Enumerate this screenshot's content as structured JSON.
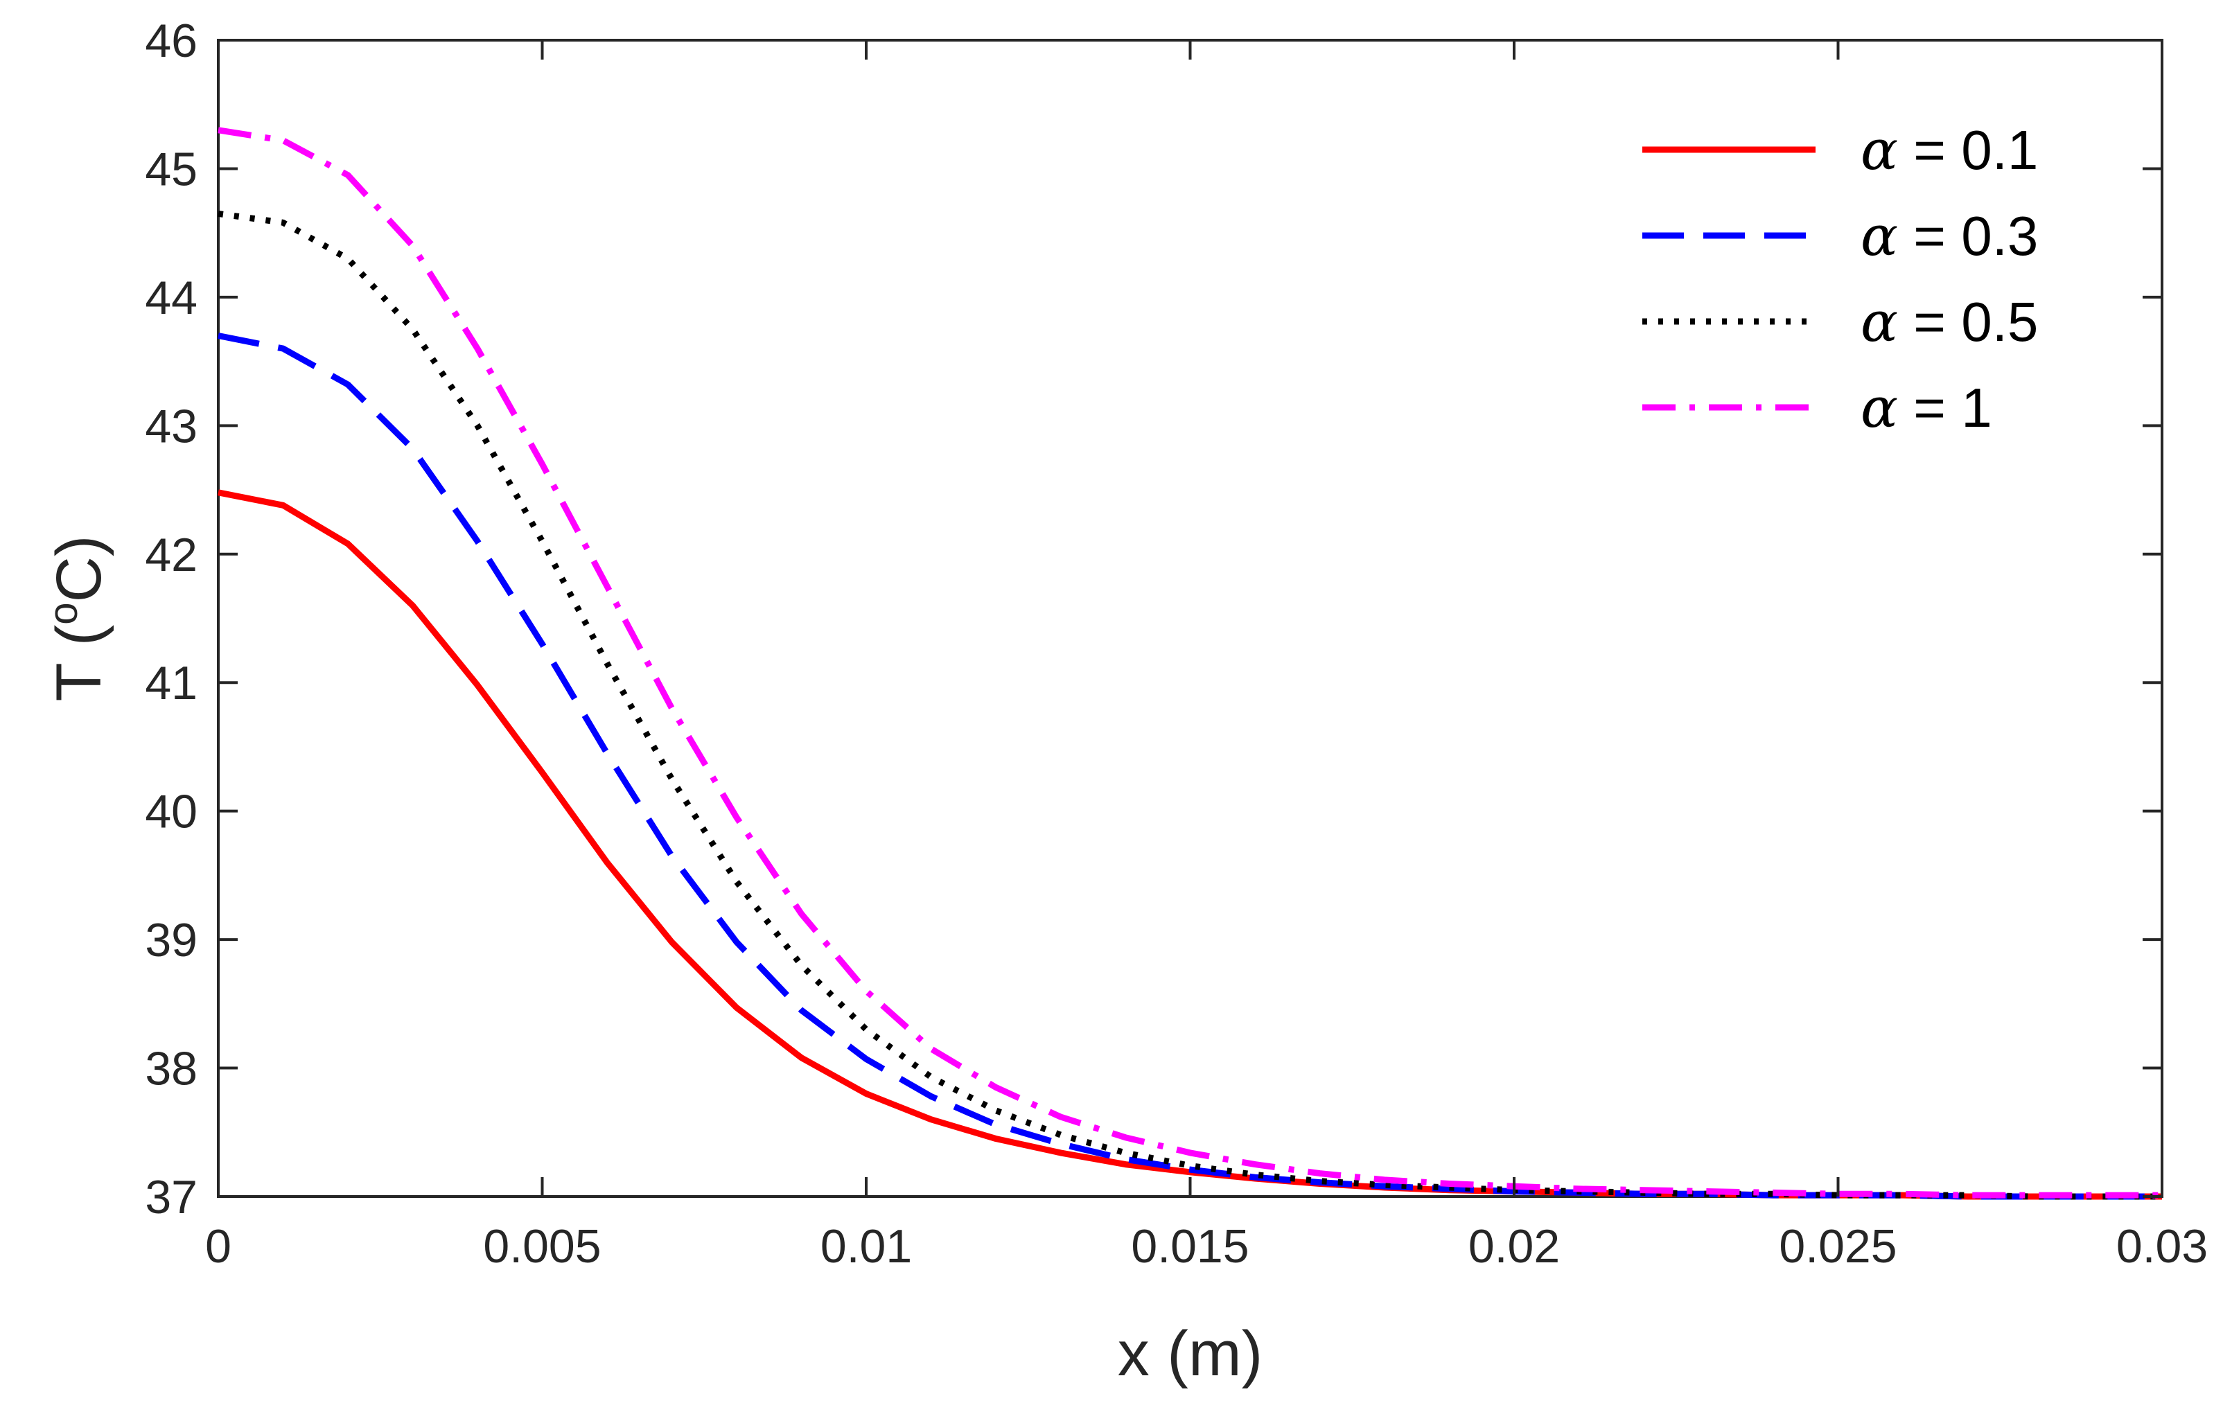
{
  "chart_data": {
    "type": "line",
    "title": "",
    "xlabel": "x (m)",
    "ylabel": {
      "prefix": "T (",
      "degree": "o",
      "unit": "C)"
    },
    "xlim": [
      0,
      0.03
    ],
    "ylim": [
      37,
      46
    ],
    "xticks": [
      0,
      0.005,
      0.01,
      0.015,
      0.02,
      0.025,
      0.03
    ],
    "xtick_labels": [
      "0",
      "0.005",
      "0.01",
      "0.015",
      "0.02",
      "0.025",
      "0.03"
    ],
    "yticks": [
      37,
      38,
      39,
      40,
      41,
      42,
      43,
      44,
      45,
      46
    ],
    "ytick_labels": [
      "37",
      "38",
      "39",
      "40",
      "41",
      "42",
      "43",
      "44",
      "45",
      "46"
    ],
    "grid": false,
    "legend_position": "top-right",
    "x": [
      0,
      0.001,
      0.002,
      0.003,
      0.004,
      0.005,
      0.006,
      0.007,
      0.008,
      0.009,
      0.01,
      0.011,
      0.012,
      0.013,
      0.014,
      0.015,
      0.016,
      0.017,
      0.018,
      0.019,
      0.02,
      0.021,
      0.022,
      0.023,
      0.024,
      0.025,
      0.026,
      0.027,
      0.028,
      0.029,
      0.03
    ],
    "series": [
      {
        "name": "α = 0.1",
        "symbol": "α",
        "value_text": " = 0.1",
        "color": "#ff0000",
        "style": "solid",
        "values": [
          42.48,
          42.38,
          42.08,
          41.6,
          40.98,
          40.3,
          39.6,
          38.98,
          38.47,
          38.08,
          37.8,
          37.6,
          37.45,
          37.34,
          37.25,
          37.19,
          37.14,
          37.1,
          37.07,
          37.05,
          37.04,
          37.03,
          37.02,
          37.02,
          37.01,
          37.01,
          37.01,
          37.0,
          37.0,
          37.0,
          37.0
        ]
      },
      {
        "name": "α = 0.3",
        "symbol": "α",
        "value_text": " = 0.3",
        "color": "#0000ff",
        "style": "dashed",
        "values": [
          43.7,
          43.6,
          43.32,
          42.82,
          42.1,
          41.3,
          40.45,
          39.65,
          38.98,
          38.45,
          38.07,
          37.78,
          37.56,
          37.41,
          37.29,
          37.21,
          37.15,
          37.11,
          37.08,
          37.06,
          37.04,
          37.03,
          37.02,
          37.02,
          37.01,
          37.01,
          37.01,
          37.0,
          37.0,
          37.0,
          37.0
        ]
      },
      {
        "name": "α = 0.5",
        "symbol": "α",
        "value_text": " = 0.5",
        "color": "#000000",
        "style": "dotted",
        "values": [
          44.65,
          44.58,
          44.3,
          43.75,
          43.0,
          42.1,
          41.15,
          40.25,
          39.45,
          38.8,
          38.3,
          37.93,
          37.67,
          37.48,
          37.34,
          37.24,
          37.17,
          37.12,
          37.09,
          37.07,
          37.05,
          37.04,
          37.03,
          37.02,
          37.02,
          37.01,
          37.01,
          37.01,
          37.0,
          37.0,
          37.0
        ]
      },
      {
        "name": "α = 1",
        "symbol": "α",
        "value_text": " = 1",
        "color": "#ff00ff",
        "style": "dashdot",
        "values": [
          45.3,
          45.22,
          44.95,
          44.4,
          43.6,
          42.7,
          41.75,
          40.8,
          39.95,
          39.2,
          38.6,
          38.15,
          37.85,
          37.62,
          37.46,
          37.34,
          37.25,
          37.18,
          37.13,
          37.1,
          37.08,
          37.06,
          37.05,
          37.04,
          37.03,
          37.02,
          37.02,
          37.01,
          37.01,
          37.01,
          37.01
        ]
      }
    ]
  }
}
